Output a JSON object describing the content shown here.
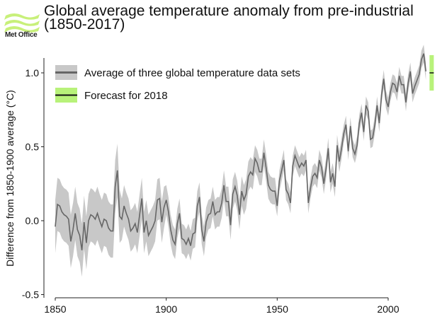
{
  "logo": {
    "text": "Met Office",
    "color": "#c8f07a"
  },
  "chart_data": {
    "type": "line",
    "title_line1": "Global average temperature anomaly from pre-industrial",
    "title_line2": "(1850-2017)",
    "xlabel": "",
    "ylabel": "Difference from 1850-1900 average (°C)",
    "xlim": [
      1850,
      2022
    ],
    "ylim": [
      -0.5,
      1.2
    ],
    "x_ticks": [
      1850,
      1900,
      1950,
      2000
    ],
    "y_ticks": [
      -0.5,
      0.0,
      0.5,
      1.0
    ],
    "y_tick_labels": [
      "-0.5",
      "0.0",
      "0.5",
      "1.0"
    ],
    "grid": false,
    "legend_placement": "top-left",
    "colors": {
      "line": "#666666",
      "band": "#c8c8c8",
      "forecast_band": "#b8f27a",
      "forecast_line": "#111111"
    },
    "series": [
      {
        "name": "Average of three global temperature data sets",
        "x_start": 1850,
        "x_end": 2017,
        "values": [
          -0.04,
          0.11,
          0.1,
          0.06,
          0.04,
          0.03,
          0.01,
          -0.14,
          -0.06,
          0.05,
          -0.06,
          -0.1,
          -0.2,
          -0.01,
          -0.15,
          0.0,
          0.04,
          0.03,
          0.01,
          0.05,
          0.0,
          -0.04,
          0.01,
          0.0,
          -0.05,
          -0.07,
          -0.07,
          0.23,
          0.34,
          0.03,
          0.01,
          0.1,
          0.05,
          0.01,
          -0.07,
          -0.05,
          -0.02,
          -0.08,
          0.04,
          0.15,
          -0.08,
          0.0,
          -0.1,
          -0.07,
          -0.04,
          0.0,
          0.14,
          0.15,
          -0.01,
          0.09,
          0.14,
          0.06,
          -0.06,
          -0.13,
          -0.16,
          -0.02,
          0.05,
          -0.12,
          -0.13,
          -0.16,
          -0.12,
          -0.17,
          -0.09,
          -0.08,
          0.1,
          0.16,
          -0.06,
          -0.14,
          -0.01,
          0.04,
          0.05,
          0.13,
          0.04,
          0.06,
          0.06,
          0.12,
          0.24,
          0.13,
          0.13,
          -0.03,
          0.18,
          0.23,
          0.17,
          0.04,
          0.2,
          0.14,
          0.18,
          0.3,
          0.33,
          0.31,
          0.42,
          0.39,
          0.33,
          0.33,
          0.46,
          0.36,
          0.24,
          0.21,
          0.2,
          0.2,
          0.1,
          0.27,
          0.34,
          0.41,
          0.21,
          0.18,
          0.12,
          0.37,
          0.44,
          0.4,
          0.36,
          0.39,
          0.37,
          0.41,
          0.12,
          0.22,
          0.3,
          0.32,
          0.29,
          0.41,
          0.36,
          0.25,
          0.35,
          0.49,
          0.26,
          0.32,
          0.23,
          0.51,
          0.4,
          0.49,
          0.59,
          0.65,
          0.47,
          0.64,
          0.49,
          0.45,
          0.51,
          0.66,
          0.73,
          0.6,
          0.78,
          0.74,
          0.55,
          0.56,
          0.65,
          0.78,
          0.66,
          0.85,
          0.96,
          0.82,
          0.77,
          0.87,
          0.93,
          0.92,
          0.87,
          0.98,
          0.92,
          0.92,
          0.8,
          0.93,
          1.01,
          0.86,
          0.91,
          0.95,
          0.99,
          1.09,
          1.13,
          1.01
        ],
        "uncertainty_halfwidth": [
          {
            "from": 1850,
            "to": 1879,
            "value": 0.18
          },
          {
            "from": 1880,
            "to": 1899,
            "value": 0.14
          },
          {
            "from": 1900,
            "to": 1939,
            "value": 0.1
          },
          {
            "from": 1940,
            "to": 1949,
            "value": 0.09
          },
          {
            "from": 1950,
            "to": 1979,
            "value": 0.07
          },
          {
            "from": 1980,
            "to": 2017,
            "value": 0.06
          }
        ]
      },
      {
        "name": "Forecast for 2018",
        "x": 2018,
        "value": 1.0,
        "range": [
          0.88,
          1.12
        ]
      }
    ]
  }
}
